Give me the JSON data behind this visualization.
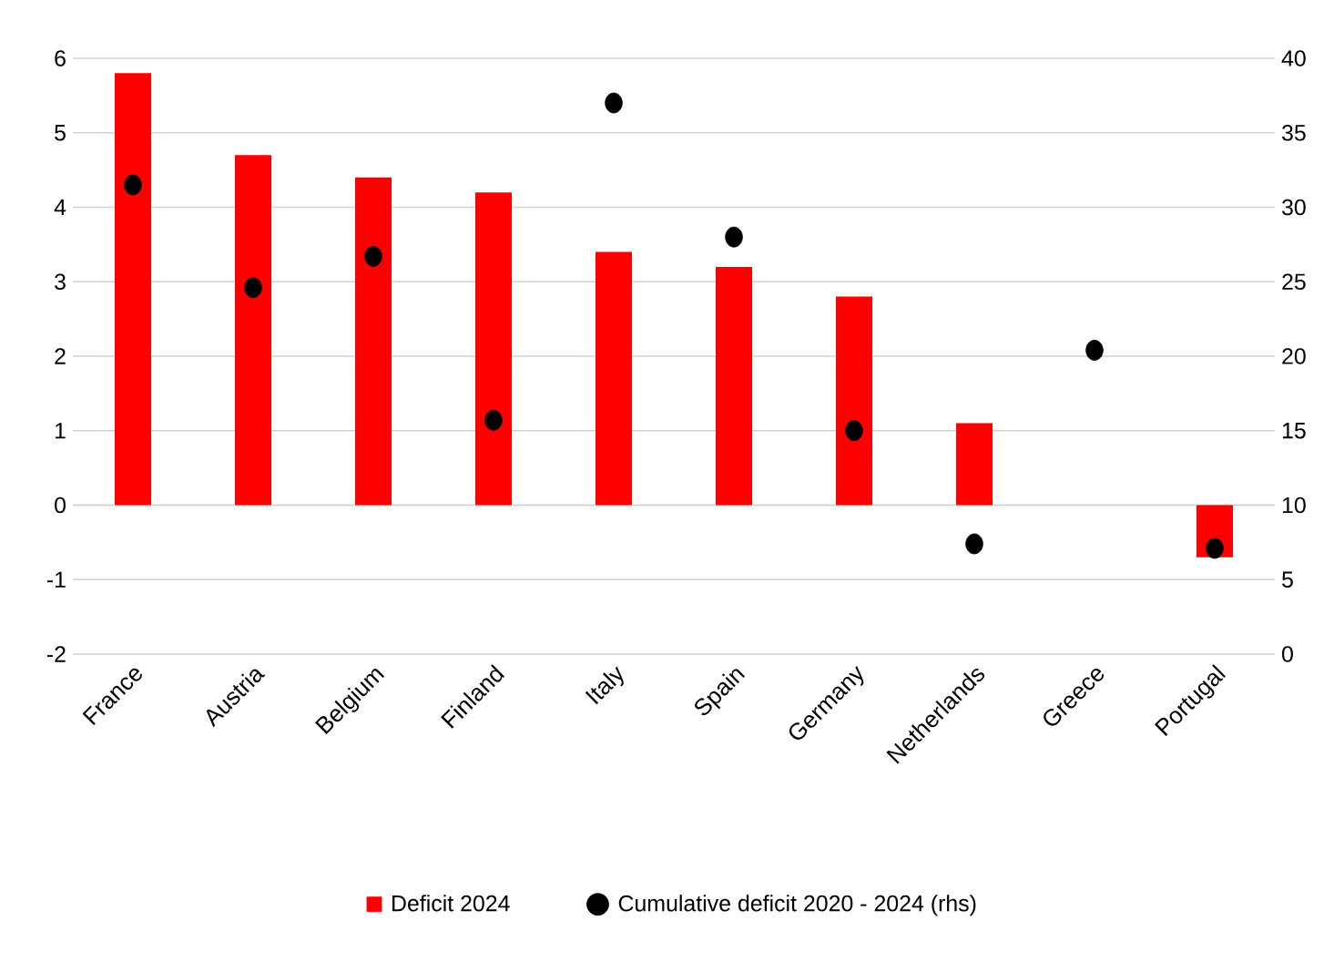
{
  "chart_data": {
    "type": "bar",
    "categories": [
      "France",
      "Austria",
      "Belgium",
      "Finland",
      "Italy",
      "Spain",
      "Germany",
      "Netherlands",
      "Greece",
      "Portugal"
    ],
    "series": [
      {
        "name": "Deficit 2024",
        "color": "#ff0000",
        "values": [
          5.8,
          4.7,
          4.4,
          4.2,
          3.4,
          3.2,
          2.8,
          1.1,
          null,
          -0.7
        ]
      },
      {
        "name": "Cumulative deficit 2020 - 2024 (rhs)",
        "type": "scatter",
        "axis": "y2",
        "color": "#000000",
        "values": [
          31.5,
          24.6,
          26.7,
          15.7,
          37.0,
          28.0,
          15.0,
          7.4,
          20.4,
          7.1
        ]
      }
    ],
    "ylim": [
      -2,
      6
    ],
    "yticks": [
      -2,
      -1,
      0,
      1,
      2,
      3,
      4,
      5,
      6
    ],
    "y2lim": [
      0,
      40
    ],
    "y2ticks": [
      0,
      5,
      10,
      15,
      20,
      25,
      30,
      35,
      40
    ],
    "grid": "y",
    "legend": "bottom"
  }
}
